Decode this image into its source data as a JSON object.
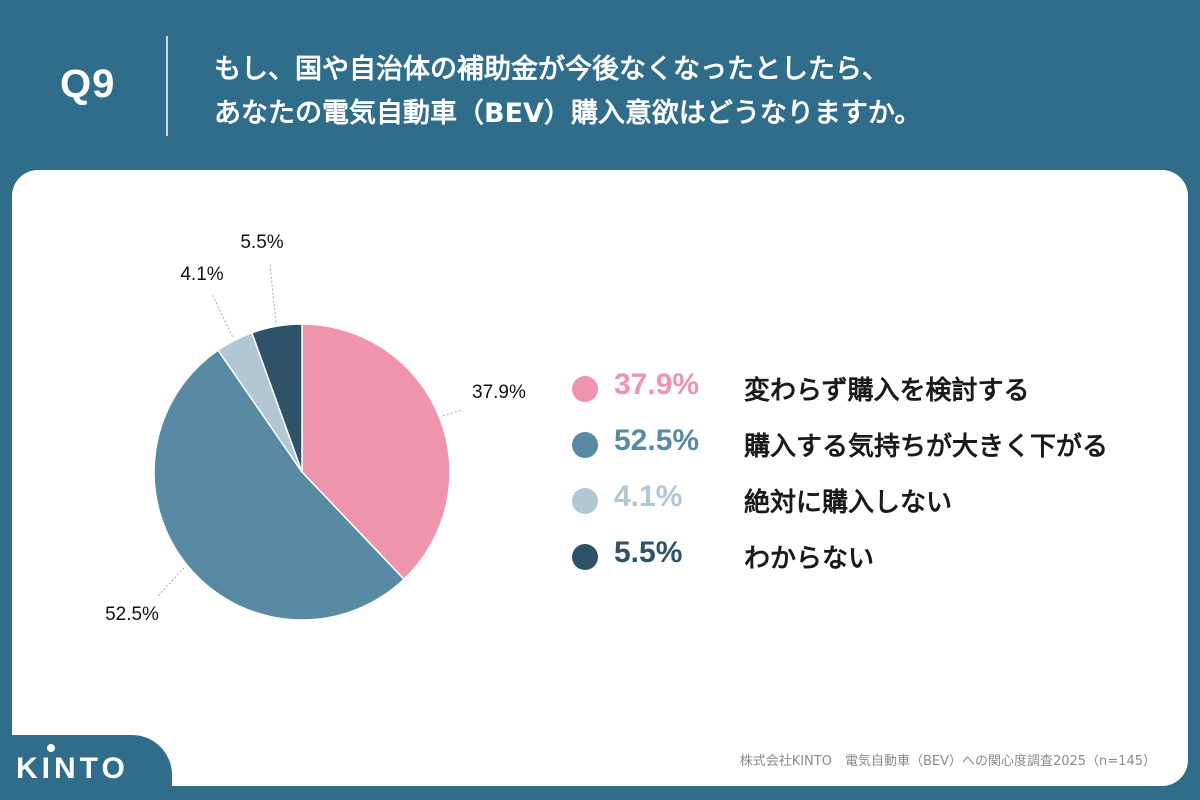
{
  "header": {
    "question_number": "Q9",
    "question_line1": "もし、国や自治体の補助金が今後なくなったとしたら、",
    "question_line2": "あなたの電気自動車（BEV）購入意欲はどうなりますか。"
  },
  "chart_data": {
    "type": "pie",
    "start_angle": "12 o'clock, clockwise",
    "slices": [
      {
        "label": "変わらず購入を検討する",
        "value": 37.9,
        "value_label": "37.9%",
        "color": "#ef94ad"
      },
      {
        "label": "購入する気持ちが大きく下がる",
        "value": 52.5,
        "value_label": "52.5%",
        "color": "#588aa4"
      },
      {
        "label": "絶対に購入しない",
        "value": 4.1,
        "value_label": "4.1%",
        "color": "#b1c7d3"
      },
      {
        "label": "わからない",
        "value": 5.5,
        "value_label": "5.5%",
        "color": "#2e5268"
      }
    ],
    "legend_placement": "right"
  },
  "footer": {
    "logo": "KINTO",
    "source": "株式会社KINTO　電気自動車（BEV）への関心度調査2025（n=145）"
  }
}
